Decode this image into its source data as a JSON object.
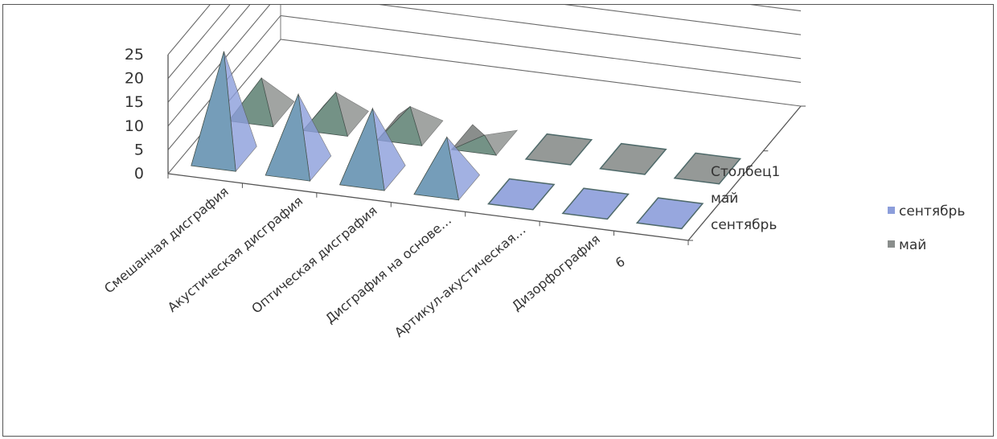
{
  "chart_data": {
    "type": "bar",
    "subtype": "3d-pyramid",
    "categories": [
      "Смешанная дисграфия",
      "Акустическая дисграфия",
      "Оптическая дисграфия",
      "Дисграфия на основе…",
      "Артикул-акустическая…",
      "Дизорфография",
      "6"
    ],
    "series_axis_labels": [
      "Столбец1",
      "май",
      "сентябрь"
    ],
    "series": [
      {
        "name": "сентябрь",
        "values": [
          22,
          15,
          14,
          10,
          0,
          0,
          0
        ],
        "color": "#8c9edb"
      },
      {
        "name": "май",
        "values": [
          7,
          6,
          5,
          1,
          0,
          0,
          0
        ],
        "color": "#8a8e8c"
      }
    ],
    "y_ticks": [
      "25",
      "20",
      "15",
      "10",
      "5",
      "0"
    ],
    "ylim": [
      0,
      25
    ],
    "grid": true,
    "legend": {
      "position": "right",
      "items": [
        "сентябрь",
        "май"
      ]
    }
  }
}
